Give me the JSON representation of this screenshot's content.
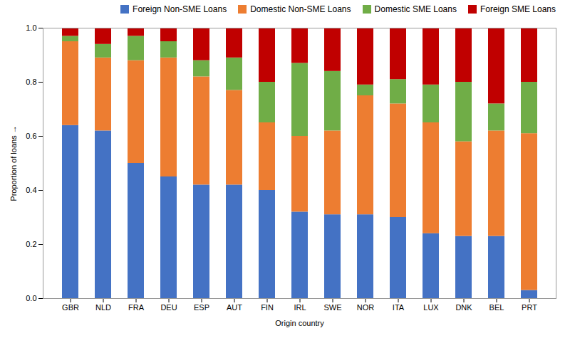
{
  "chart_data": {
    "type": "bar",
    "stacked": true,
    "categories": [
      "GBR",
      "NLD",
      "FRA",
      "DEU",
      "ESP",
      "AUT",
      "FIN",
      "IRL",
      "SWE",
      "NOR",
      "ITA",
      "LUX",
      "DNK",
      "BEL",
      "PRT"
    ],
    "series": [
      {
        "name": "Foreign Non-SME Loans",
        "color": "#4472c4",
        "values": [
          0.64,
          0.62,
          0.5,
          0.45,
          0.42,
          0.42,
          0.4,
          0.32,
          0.31,
          0.31,
          0.3,
          0.24,
          0.23,
          0.23,
          0.03
        ]
      },
      {
        "name": "Domestic Non-SME Loans",
        "color": "#ed7d31",
        "values": [
          0.31,
          0.27,
          0.38,
          0.44,
          0.4,
          0.35,
          0.25,
          0.28,
          0.31,
          0.44,
          0.42,
          0.41,
          0.35,
          0.39,
          0.58
        ]
      },
      {
        "name": "Domestic SME Loans",
        "color": "#70ad47",
        "values": [
          0.02,
          0.05,
          0.09,
          0.06,
          0.06,
          0.12,
          0.15,
          0.27,
          0.22,
          0.04,
          0.09,
          0.14,
          0.22,
          0.1,
          0.19
        ]
      },
      {
        "name": "Foreign SME Loans",
        "color": "#c00000",
        "values": [
          0.03,
          0.06,
          0.03,
          0.05,
          0.12,
          0.11,
          0.2,
          0.13,
          0.16,
          0.21,
          0.19,
          0.21,
          0.2,
          0.28,
          0.2
        ]
      }
    ],
    "xlabel": "Origin country",
    "ylabel": "Proportion of loans",
    "ylim": [
      0,
      1.0
    ],
    "yticks": [
      {
        "value": 0,
        "label": "0.0"
      },
      0.2,
      0.4,
      0.6,
      0.8,
      {
        "value": 1.0,
        "label": "1.0"
      }
    ],
    "grid": false,
    "legend": "upper right"
  }
}
